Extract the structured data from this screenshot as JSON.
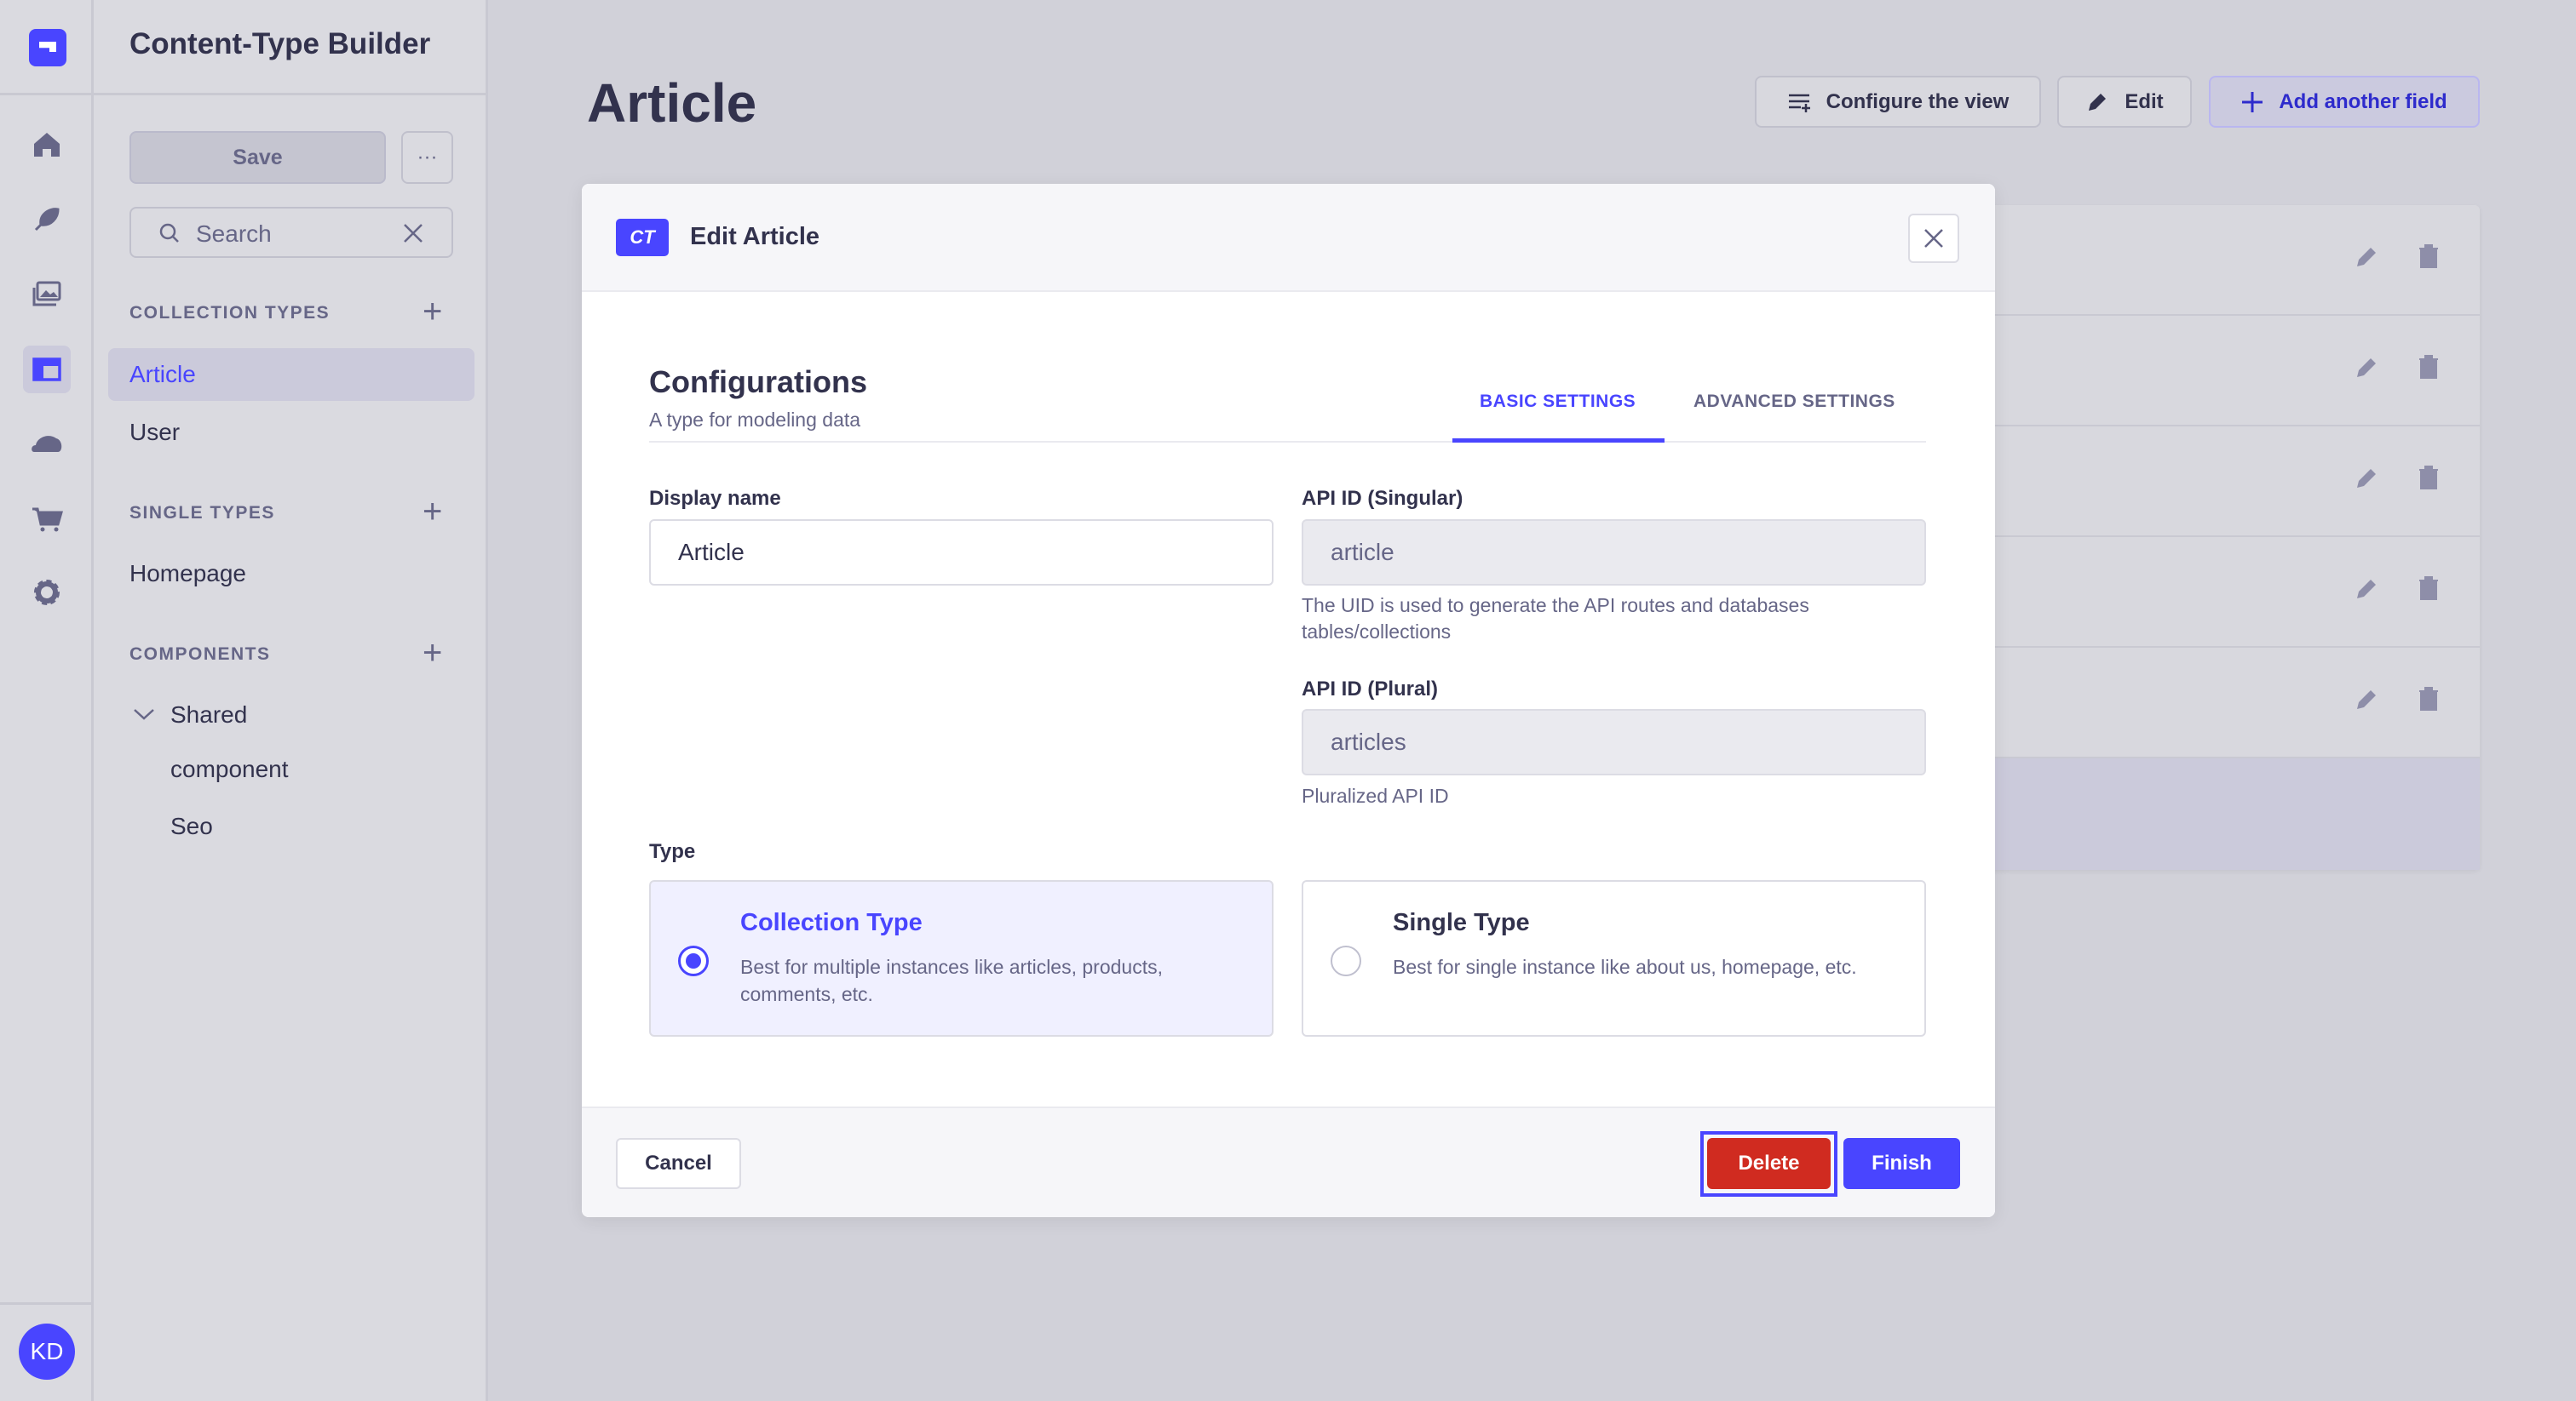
{
  "nav_rail": {
    "items": [
      "home-icon",
      "feather-icon",
      "media-icon",
      "content-type-builder-icon",
      "cloud-icon",
      "cart-icon",
      "settings-icon"
    ],
    "active": "content-type-builder-icon",
    "avatar_initials": "KD"
  },
  "sidebar": {
    "title": "Content-Type Builder",
    "save_label": "Save",
    "more_label": "···",
    "search_placeholder": "Search",
    "collection_types": {
      "heading": "COLLECTION TYPES",
      "items": [
        "Article",
        "User"
      ],
      "active": "Article"
    },
    "single_types": {
      "heading": "SINGLE TYPES",
      "items": [
        "Homepage"
      ]
    },
    "components": {
      "heading": "COMPONENTS",
      "group": "Shared",
      "items": [
        "component",
        "Seo"
      ]
    }
  },
  "main": {
    "title": "Article",
    "configure_label": "Configure the view",
    "edit_label": "Edit",
    "add_field_label": "Add another field"
  },
  "modal": {
    "badge": "CT",
    "title": "Edit Article",
    "section_title": "Configurations",
    "section_subtitle": "A type for modeling data",
    "tabs": [
      {
        "label": "BASIC SETTINGS",
        "active": true
      },
      {
        "label": "ADVANCED SETTINGS",
        "active": false
      }
    ],
    "display_name": {
      "label": "Display name",
      "value": "Article"
    },
    "api_singular": {
      "label": "API ID (Singular)",
      "value": "article",
      "help": "The UID is used to generate the API routes and databases tables/collections"
    },
    "api_plural": {
      "label": "API ID (Plural)",
      "value": "articles",
      "help": "Pluralized API ID"
    },
    "type": {
      "label": "Type",
      "options": [
        {
          "title": "Collection Type",
          "desc": "Best for multiple instances like articles, products, comments, etc.",
          "selected": true
        },
        {
          "title": "Single Type",
          "desc": "Best for single instance like about us, homepage, etc.",
          "selected": false
        }
      ]
    },
    "cancel_label": "Cancel",
    "delete_label": "Delete",
    "finish_label": "Finish"
  },
  "colors": {
    "primary": "#4945ff",
    "danger": "#d02b20",
    "text": "#32324d",
    "muted": "#666687"
  }
}
